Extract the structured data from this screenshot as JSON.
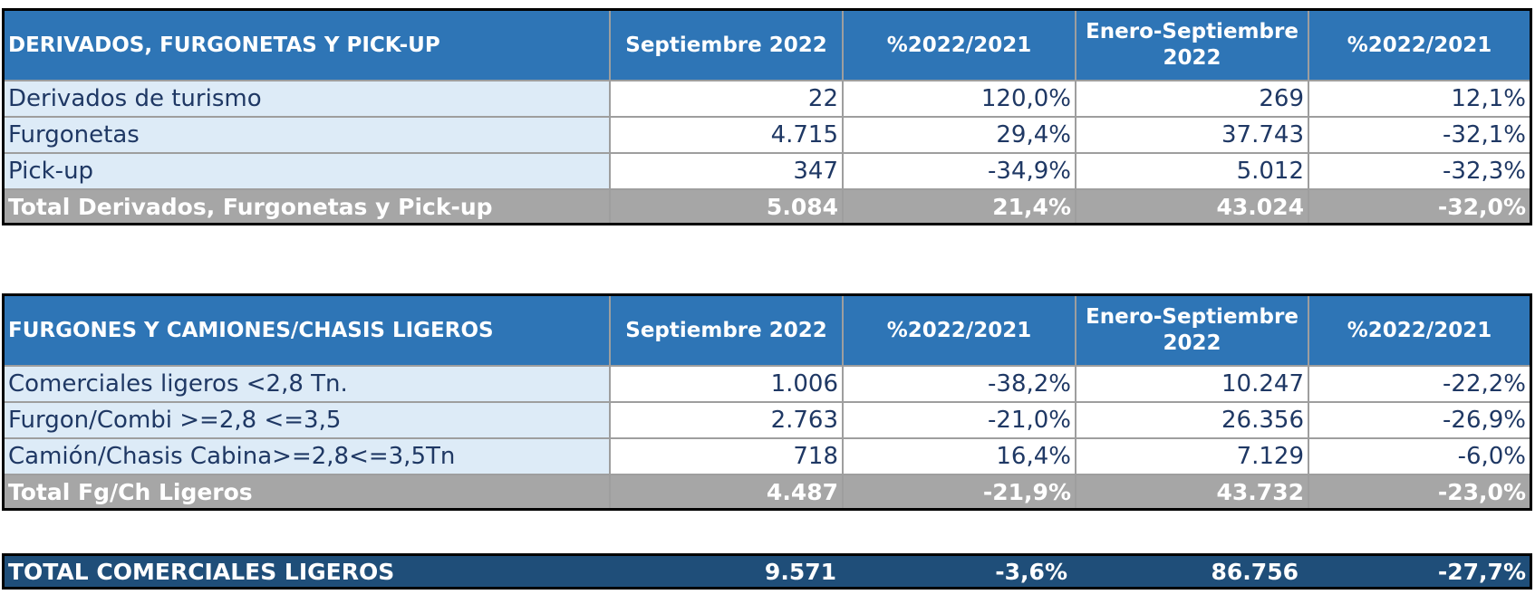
{
  "table1": {
    "headers": [
      "DERIVADOS, FURGONETAS Y PICK-UP",
      "Septiembre 2022",
      "%2022/2021",
      "Enero-Septiembre 2022",
      "%2022/2021"
    ],
    "rows": [
      [
        "Derivados de turismo",
        "22",
        "120,0%",
        "269",
        "12,1%"
      ],
      [
        "Furgonetas",
        "4.715",
        "29,4%",
        "37.743",
        "-32,1%"
      ],
      [
        "Pick-up",
        "347",
        "-34,9%",
        "5.012",
        "-32,3%"
      ]
    ],
    "total": [
      "Total Derivados, Furgonetas y Pick-up",
      "5.084",
      "21,4%",
      "43.024",
      "-32,0%"
    ]
  },
  "table2": {
    "headers": [
      "FURGONES Y CAMIONES/CHASIS LIGEROS",
      "Septiembre 2022",
      "%2022/2021",
      "Enero-Septiembre 2022",
      "%2022/2021"
    ],
    "rows": [
      [
        "Comerciales ligeros <2,8 Tn.",
        "1.006",
        "-38,2%",
        "10.247",
        "-22,2%"
      ],
      [
        "Furgon/Combi >=2,8 <=3,5",
        "2.763",
        "-21,0%",
        "26.356",
        "-26,9%"
      ],
      [
        "Camión/Chasis Cabina>=2,8<=3,5Tn",
        "718",
        "16,4%",
        "7.129",
        "-6,0%"
      ]
    ],
    "total": [
      "Total Fg/Ch Ligeros",
      "4.487",
      "-21,9%",
      "43.732",
      "-23,0%"
    ]
  },
  "grand_total": [
    "TOTAL COMERCIALES LIGEROS",
    "9.571",
    "-3,6%",
    "86.756",
    "-27,7%"
  ],
  "colors": {
    "header_blue": "#2e75b6",
    "label_cell_light_blue": "#ddebf7",
    "text_dark_blue": "#1f3864",
    "total_gray": "#a6a6a6",
    "grand_total_navy": "#1f4e79"
  }
}
